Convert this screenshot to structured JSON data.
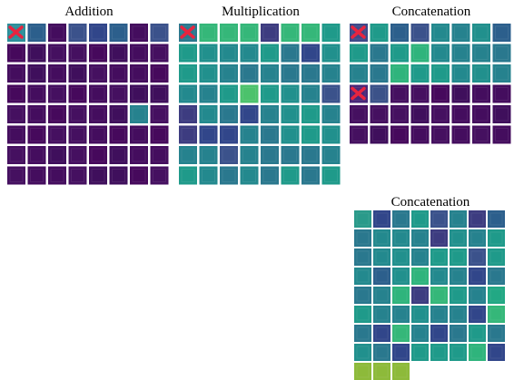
{
  "panels": [
    {
      "title": "Addition"
    },
    {
      "title": "Multiplication"
    },
    {
      "title": "Concatenation"
    },
    {
      "title": "Concatenation"
    }
  ]
}
